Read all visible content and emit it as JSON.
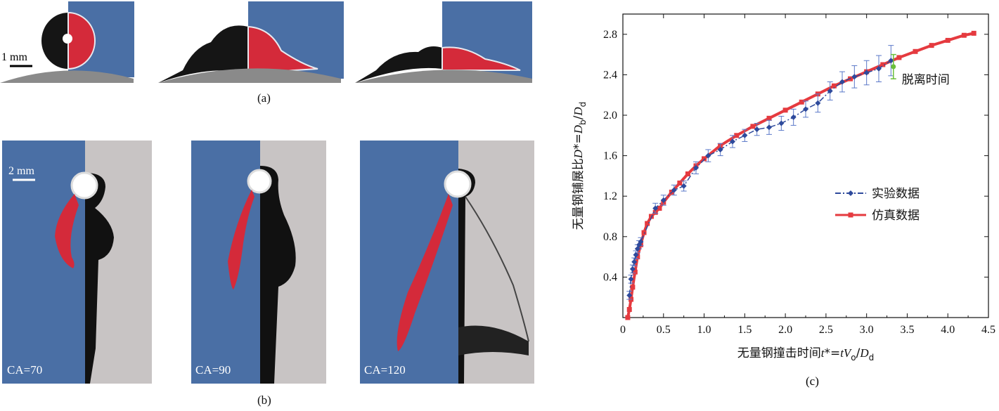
{
  "panel_a": {
    "label": "(a)",
    "scale_label": "1 mm"
  },
  "panel_b": {
    "label": "(b)",
    "scale_label": "2 mm",
    "frames": [
      "CA=70",
      "CA=90",
      "CA=120"
    ]
  },
  "panel_c": {
    "label": "(c)",
    "annotation": "脱离时间"
  },
  "colors": {
    "sim_blue": "#4a6fa5",
    "sim_red": "#d42a3a",
    "substrate_gray": "#8a8a8a",
    "exp_series": "#2e4a9c",
    "sim_series": "#e53a3f",
    "error_bar": "#5a78c8",
    "detach_point": "#6bbf3a"
  },
  "chart_data": {
    "type": "line",
    "xlabel_parts": [
      "无量钢撞击时间",
      "t",
      "*=",
      "tV",
      "o",
      "/",
      "D",
      "d"
    ],
    "ylabel_parts": [
      "无量钢铺展比",
      "D",
      "*=",
      "D",
      "b",
      "/",
      "D",
      "d"
    ],
    "xlim": [
      0,
      4.5
    ],
    "ylim": [
      0,
      3.0
    ],
    "xticks": [
      0,
      0.5,
      1.0,
      1.5,
      2.0,
      2.5,
      3.0,
      3.5,
      4.0,
      4.5
    ],
    "xtick_labels": [
      "0",
      "0.5",
      "1.0",
      "1.5",
      "2.0",
      "2.5",
      "3.0",
      "3.5",
      "4.0",
      "4.5"
    ],
    "yticks": [
      0.4,
      0.8,
      1.2,
      1.6,
      2.0,
      2.4,
      2.8
    ],
    "ytick_labels": [
      "0.4",
      "0.8",
      "1.2",
      "1.6",
      "2.0",
      "2.4",
      "2.8"
    ],
    "legend_position": "center-right",
    "series": [
      {
        "name": "实验数据",
        "color": "#2e4a9c",
        "marker": "diamond",
        "line": "dash-dot",
        "x": [
          0.08,
          0.1,
          0.12,
          0.14,
          0.16,
          0.18,
          0.2,
          0.22,
          0.4,
          0.5,
          0.63,
          0.75,
          0.9,
          1.05,
          1.2,
          1.35,
          1.5,
          1.65,
          1.8,
          1.95,
          2.1,
          2.25,
          2.4,
          2.55,
          2.7,
          2.85,
          3.0,
          3.15,
          3.3
        ],
        "y": [
          0.22,
          0.38,
          0.48,
          0.55,
          0.62,
          0.68,
          0.72,
          0.75,
          1.08,
          1.16,
          1.26,
          1.3,
          1.48,
          1.6,
          1.66,
          1.74,
          1.8,
          1.86,
          1.88,
          1.92,
          1.98,
          2.06,
          2.12,
          2.24,
          2.33,
          2.38,
          2.42,
          2.46,
          2.54
        ],
        "err": [
          0.04,
          0.04,
          0.04,
          0.04,
          0.04,
          0.04,
          0.04,
          0.04,
          0.05,
          0.05,
          0.05,
          0.05,
          0.06,
          0.06,
          0.06,
          0.06,
          0.06,
          0.06,
          0.07,
          0.07,
          0.08,
          0.08,
          0.09,
          0.09,
          0.1,
          0.11,
          0.12,
          0.13,
          0.15
        ]
      },
      {
        "name": "仿真数据",
        "color": "#e53a3f",
        "marker": "square",
        "line": "solid",
        "x": [
          0.06,
          0.08,
          0.1,
          0.12,
          0.15,
          0.18,
          0.22,
          0.26,
          0.3,
          0.35,
          0.4,
          0.45,
          0.5,
          0.6,
          0.7,
          0.8,
          0.9,
          1.0,
          1.2,
          1.4,
          1.6,
          1.8,
          2.0,
          2.2,
          2.4,
          2.6,
          2.8,
          3.0,
          3.2,
          3.4,
          3.6,
          3.8,
          4.0,
          4.2,
          4.32
        ],
        "y": [
          0.0,
          0.08,
          0.18,
          0.3,
          0.45,
          0.6,
          0.72,
          0.84,
          0.93,
          1.0,
          1.04,
          1.08,
          1.14,
          1.24,
          1.33,
          1.42,
          1.5,
          1.57,
          1.7,
          1.8,
          1.89,
          1.97,
          2.05,
          2.13,
          2.21,
          2.29,
          2.36,
          2.43,
          2.5,
          2.57,
          2.63,
          2.69,
          2.74,
          2.79,
          2.81
        ]
      }
    ],
    "detach_point": {
      "x": 3.33,
      "y": 2.48,
      "err": 0.12,
      "color": "#6bbf3a"
    }
  }
}
